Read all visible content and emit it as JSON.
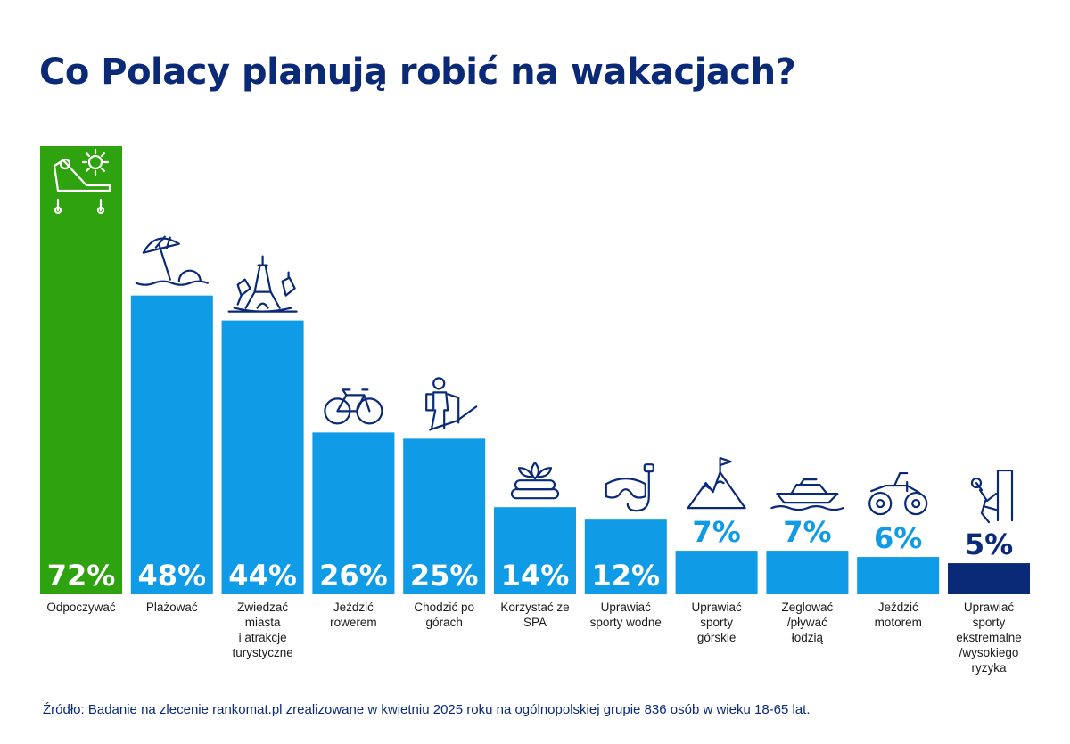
{
  "chart_data": {
    "type": "bar",
    "title": "Co Polacy planują robić na wakacjach?",
    "unit": "%",
    "categories": [
      [
        "Odpoczywać"
      ],
      [
        "Plażować"
      ],
      [
        "Zwiedzać",
        "miasta",
        "i atrakcje",
        "turystyczne"
      ],
      [
        "Jeździć",
        "rowerem"
      ],
      [
        "Chodzić po",
        "górach"
      ],
      [
        "Korzystać ze",
        "SPA"
      ],
      [
        "Uprawiać",
        "sporty wodne"
      ],
      [
        "Uprawiać",
        "sporty",
        "górskie"
      ],
      [
        "Żeglować",
        "/pływać",
        "łodzią"
      ],
      [
        "Jeździć",
        "motorem"
      ],
      [
        "Uprawiać",
        "sporty",
        "ekstremalne",
        "/wysokiego",
        "ryzyka"
      ]
    ],
    "values": [
      72,
      48,
      44,
      26,
      25,
      14,
      12,
      7,
      7,
      6,
      5
    ],
    "value_labels": [
      "72%",
      "48%",
      "44%",
      "26%",
      "25%",
      "14%",
      "12%",
      "7%",
      "7%",
      "6%",
      "5%"
    ],
    "icons": [
      "sunbed-icon",
      "beach-umbrella-icon",
      "landmarks-icon",
      "bicycle-icon",
      "hiker-icon",
      "spa-stones-icon",
      "diving-mask-icon",
      "mountain-flag-icon",
      "boat-icon",
      "quad-bike-icon",
      "climber-icon"
    ],
    "ylim": [
      0,
      72
    ],
    "grid": false,
    "colors": {
      "highlight": "#2ea30f",
      "default": "#0f9be6",
      "lowest": "#0a2a78",
      "title": "#0a2a78",
      "icon": "#0a2a78"
    }
  },
  "source": "Źródło: Badanie na zlecenie rankomat.pl zrealizowane w kwietniu 2025 roku na ogólnopolskiej grupie 836 osób w wieku 18-65 lat."
}
